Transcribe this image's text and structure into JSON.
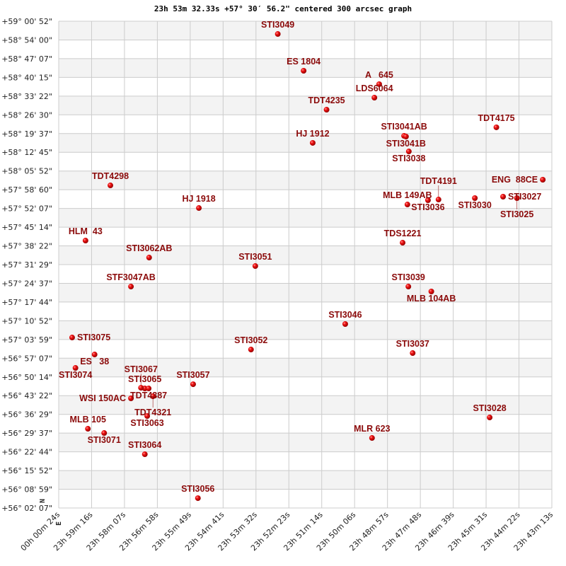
{
  "chart_data": {
    "type": "scatter",
    "title": "23h 53m 32.33s +57° 30′ 56.2\" centered 300 arcsec graph",
    "x_axis": {
      "ticks": [
        "00h 00m 24s",
        "23h 59m 16s",
        "23h 58m 07s",
        "23h 56m 58s",
        "23h 55m 49s",
        "23h 54m 41s",
        "23h 53m 32s",
        "23h 52m 23s",
        "23h 51m 14s",
        "23h 50m 06s",
        "23h 48m 57s",
        "23h 47m 48s",
        "23h 46m 39s",
        "23h 45m 31s",
        "23h 44m 22s",
        "23h 43m 13s"
      ],
      "range": [
        "00h 00m 24s",
        "23h 43m 13s"
      ],
      "direction": "decreasing-right"
    },
    "y_axis": {
      "ticks": [
        "+59° 00' 52\"",
        "+58° 54' 00\"",
        "+58° 47' 07\"",
        "+58° 40' 15\"",
        "+58° 33' 22\"",
        "+58° 26' 30\"",
        "+58° 19' 37\"",
        "+58° 12' 45\"",
        "+58° 05' 52\"",
        "+57° 58' 60\"",
        "+57° 52' 07\"",
        "+57° 45' 14\"",
        "+57° 38' 22\"",
        "+57° 31' 29\"",
        "+57° 24' 37\"",
        "+57° 17' 44\"",
        "+57° 10' 52\"",
        "+57° 03' 59\"",
        "+56° 57' 07\"",
        "+56° 50' 14\"",
        "+56° 43' 22\"",
        "+56° 36' 29\"",
        "+56° 29' 37\"",
        "+56° 22' 44\"",
        "+56° 15' 52\"",
        "+56° 08' 59\"",
        "+56° 02' 07\""
      ],
      "range": [
        "+59° 00' 52\"",
        "+56° 02' 07\""
      ]
    },
    "compass": {
      "north": "N",
      "east": "E"
    },
    "grid": true,
    "alternating_bands": true,
    "colors": {
      "point": "#dd0000",
      "label": "#8b0a0a",
      "band": "#f3f3f3",
      "grid": "#cccccc"
    },
    "points": [
      {
        "name": "STI3049",
        "ra": "23h 52m 46s",
        "dec": "+58° 56' 11\""
      },
      {
        "name": "ES 1804",
        "ra": "23h 51m 52s",
        "dec": "+58° 42' 41\""
      },
      {
        "name": "A   645",
        "ra": "23h 49m 14s",
        "dec": "+58° 37' 45\""
      },
      {
        "name": "LDS6064",
        "ra": "23h 49m 24s",
        "dec": "+58° 32' 48\""
      },
      {
        "name": "TDT4235",
        "ra": "23h 51m 04s",
        "dec": "+58° 28' 23\""
      },
      {
        "name": "HJ 1912",
        "ra": "23h 51m 33s",
        "dec": "+58° 16' 11\""
      },
      {
        "name": "STI3041AB",
        "ra": "23h 48m 22s",
        "dec": "+58° 18' 46\""
      },
      {
        "name": "STI3041B",
        "ra": "23h 48m 18s",
        "dec": "+58° 18' 31\""
      },
      {
        "name": "STI3038",
        "ra": "23h 48m 12s",
        "dec": "+58° 13' 03\""
      },
      {
        "name": "TDT4175",
        "ra": "23h 45m 09s",
        "dec": "+58° 21' 54\""
      },
      {
        "name": "ENG  88CE",
        "ra": "23h 43m 32s",
        "dec": "+58° 02' 40\""
      },
      {
        "name": "TDT4298",
        "ra": "23h 58m 36s",
        "dec": "+58° 00' 35\""
      },
      {
        "name": "HJ 1918",
        "ra": "23h 55m 31s",
        "dec": "+57° 52' 16\""
      },
      {
        "name": "MLB 149AB",
        "ra": "23h 48m 15s",
        "dec": "+57° 53' 34\""
      },
      {
        "name": "STI3036",
        "ra": "23h 47m 32s",
        "dec": "+57° 55' 08\""
      },
      {
        "name": "TDT4191",
        "ra": "23h 47m 10s",
        "dec": "+57° 55' 23\""
      },
      {
        "name": "STI3030",
        "ra": "23h 45m 54s",
        "dec": "+57° 55' 55\""
      },
      {
        "name": "STI3027",
        "ra": "23h 44m 55s",
        "dec": "+57° 56' 26\""
      },
      {
        "name": "STI3025",
        "ra": "23h 44m 26s",
        "dec": "+57° 55' 55\""
      },
      {
        "name": "HLM  43",
        "ra": "23h 59m 28s",
        "dec": "+57° 40' 19\""
      },
      {
        "name": "TDS1221",
        "ra": "23h 48m 25s",
        "dec": "+57° 39' 32\""
      },
      {
        "name": "STI3062AB",
        "ra": "23h 57m 15s",
        "dec": "+57° 34' 05\""
      },
      {
        "name": "STI3051",
        "ra": "23h 53m 33s",
        "dec": "+57° 30' 58\""
      },
      {
        "name": "STF3047AB",
        "ra": "23h 57m 53s",
        "dec": "+57° 23' 26\""
      },
      {
        "name": "STI3039",
        "ra": "23h 48m 13s",
        "dec": "+57° 23' 26\""
      },
      {
        "name": "MLB 104AB",
        "ra": "23h 47m 25s",
        "dec": "+57° 21' 37\""
      },
      {
        "name": "STI3046",
        "ra": "23h 50m 25s",
        "dec": "+57° 09' 40\""
      },
      {
        "name": "STI3075",
        "ra": "23h 59m 56s",
        "dec": "+57° 04' 43\""
      },
      {
        "name": "ES   38",
        "ra": "23h 59m 09s",
        "dec": "+56° 58' 29\""
      },
      {
        "name": "STI3052",
        "ra": "23h 53m 42s",
        "dec": "+57° 00' 18\""
      },
      {
        "name": "STI3037",
        "ra": "23h 48m 04s",
        "dec": "+56° 59' 00\""
      },
      {
        "name": "STI3074",
        "ra": "23h 59m 49s",
        "dec": "+56° 53' 33\""
      },
      {
        "name": "STI3057",
        "ra": "23h 55m 43s",
        "dec": "+56° 47' 34\""
      },
      {
        "name": "STI3065",
        "ra": "23h 57m 24s",
        "dec": "+56° 46' 01\""
      },
      {
        "name": "TDT4387",
        "ra": "23h 57m 16s",
        "dec": "+56° 46' 01\""
      },
      {
        "name": "STI3067",
        "ra": "23h 57m 32s",
        "dec": "+56° 46' 16\""
      },
      {
        "name": "TDT4321",
        "ra": "23h 57m 07s",
        "dec": "+56° 43' 09\""
      },
      {
        "name": "WSI 150AC",
        "ra": "23h 57m 53s",
        "dec": "+56° 42' 23\""
      },
      {
        "name": "STI3063",
        "ra": "23h 57m 19s",
        "dec": "+56° 35' 53\""
      },
      {
        "name": "MLB 105",
        "ra": "23h 59m 23s",
        "dec": "+56° 31' 12\""
      },
      {
        "name": "STI3071",
        "ra": "23h 58m 49s",
        "dec": "+56° 29' 39\""
      },
      {
        "name": "STI3064",
        "ra": "23h 57m 24s",
        "dec": "+56° 21' 51\""
      },
      {
        "name": "MLR 623",
        "ra": "23h 49m 29s",
        "dec": "+56° 27' 50\""
      },
      {
        "name": "STI3028",
        "ra": "23h 45m 23s",
        "dec": "+56° 35' 22\""
      },
      {
        "name": "STI3056",
        "ra": "23h 55m 33s",
        "dec": "+56° 05' 44\""
      }
    ]
  }
}
